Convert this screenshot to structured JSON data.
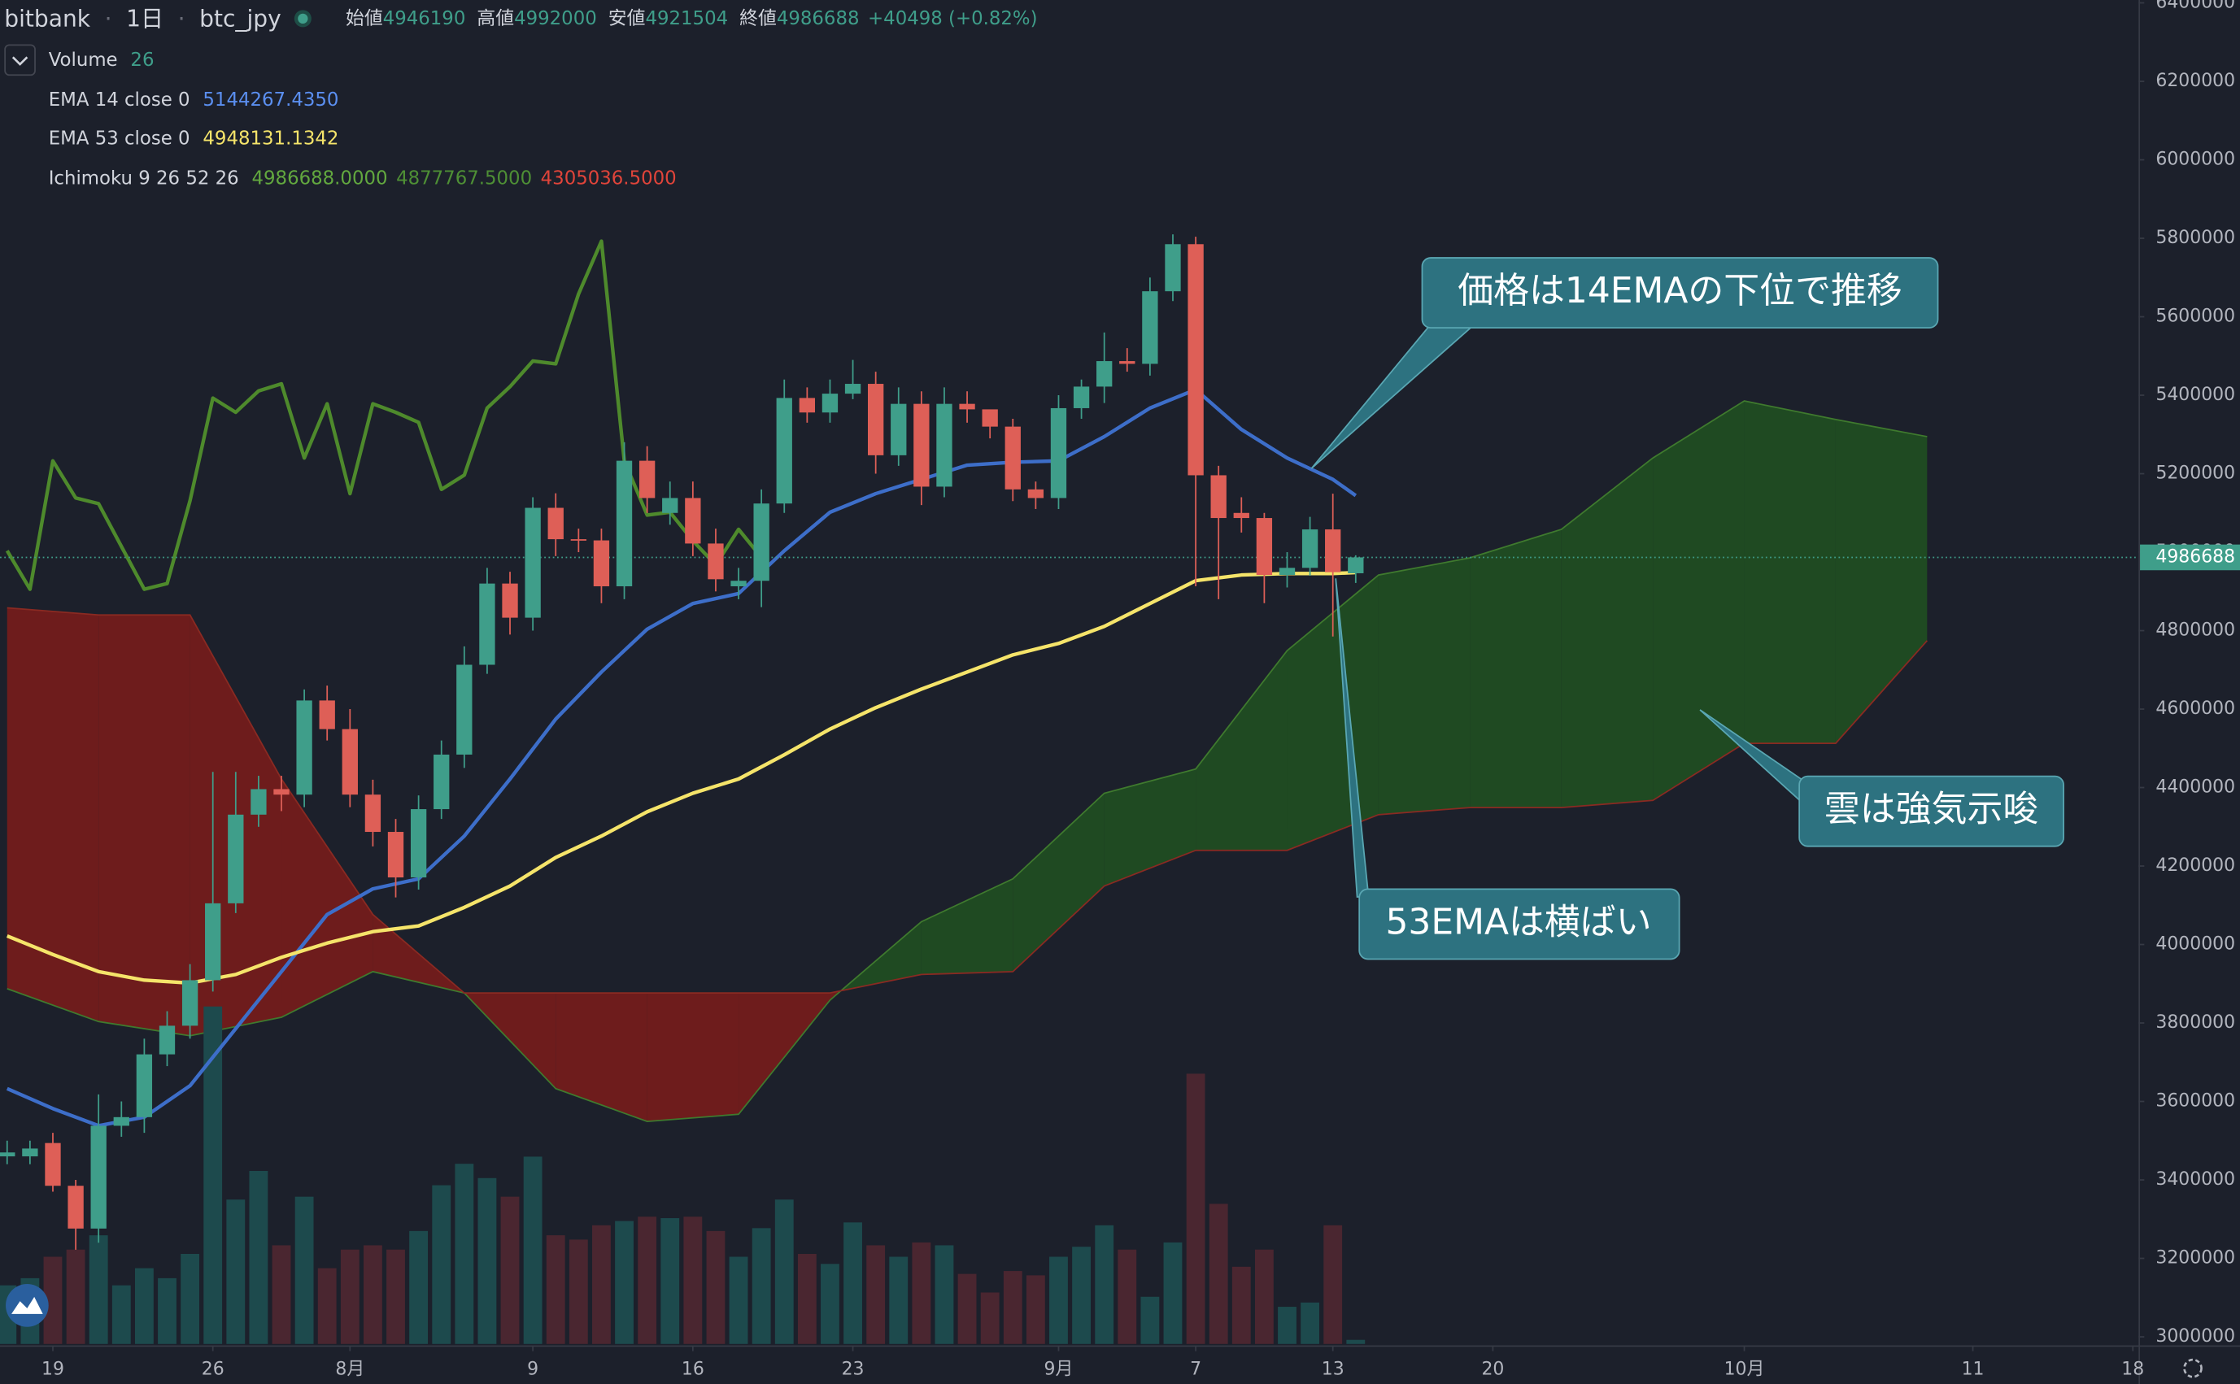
{
  "header": {
    "exchange": "bitbank",
    "interval": "1日",
    "symbol": "btc_jpy",
    "open_label": "始値",
    "open": 4946190,
    "high_label": "高値",
    "high": 4992000,
    "low_label": "安値",
    "low": 4921504,
    "close_label": "終値",
    "close": 4986688,
    "change": "+40498 (+0.82%)"
  },
  "legend": {
    "volume_name": "Volume",
    "volume_value": 26,
    "ema14_name": "EMA 14 close 0",
    "ema14_value": "5144267.4350",
    "ema53_name": "EMA 53 close 0",
    "ema53_value": "4948131.1342",
    "ichimoku_name": "Ichimoku 9 26 52 26",
    "ichimoku_value_1": "4986688.0000",
    "ichimoku_value_2": "4877767.5000",
    "ichimoku_value_3": "4305036.5000"
  },
  "annotations": [
    "価格は14EMAの下位で推移",
    "雲は強気示唆",
    "53EMAは横ばい"
  ],
  "chart_data": {
    "type": "candlestick",
    "xlim": [
      -0.3125,
      93.25
    ],
    "xticks": [
      {
        "value": 2,
        "label": "19"
      },
      {
        "value": 9,
        "label": "26"
      },
      {
        "value": 15,
        "label": "8月"
      },
      {
        "value": 23,
        "label": "9"
      },
      {
        "value": 30,
        "label": "16"
      },
      {
        "value": 37,
        "label": "23"
      },
      {
        "value": 46,
        "label": "9月"
      },
      {
        "value": 52,
        "label": "7"
      },
      {
        "value": 58,
        "label": "13"
      },
      {
        "value": 65,
        "label": "20"
      },
      {
        "value": 76,
        "label": "10月"
      },
      {
        "value": 86,
        "label": "11"
      },
      {
        "value": 93,
        "label": "18"
      }
    ],
    "ylim": [
      3000000,
      6400000
    ],
    "yticks": [
      3000000,
      3200000,
      3400000,
      3600000,
      3800000,
      4000000,
      4200000,
      4400000,
      4600000,
      4800000,
      5000000,
      5200000,
      5400000,
      5600000,
      5800000,
      6000000,
      6200000,
      6400000
    ],
    "last_price": 4986688,
    "up_color": "#3f9e8a",
    "down_color": "#de5f57",
    "volume_up_color": "#1d4a4d",
    "volume_down_color": "#4a2630",
    "candles": {
      "open": [
        3460000,
        3460000,
        3494000,
        3385000,
        3276000,
        3538000,
        3560000,
        3720000,
        3793000,
        3909000,
        4105000,
        4331000,
        4396000,
        4382000,
        4622000,
        4549000,
        4382000,
        4287000,
        4171000,
        4345000,
        4484000,
        4713000,
        4920000,
        4833000,
        5113000,
        5033000,
        5030000,
        4913000,
        5233000,
        5100000,
        5138000,
        5022000,
        4913000,
        4927000,
        5124000,
        5393000,
        5356000,
        5404000,
        5429000,
        5247000,
        5378000,
        5167000,
        5378000,
        5364000,
        5320000,
        5160000,
        5138000,
        5367000,
        5422000,
        5487000,
        5480000,
        5665000,
        5785000,
        5196000,
        5100000,
        5087000,
        4942000,
        4960000,
        5058000,
        4946190
      ],
      "high": [
        3500000,
        3500000,
        3520000,
        3400000,
        3618000,
        3600000,
        3760000,
        3830000,
        3950000,
        4440000,
        4440000,
        4430000,
        4430000,
        4650000,
        4660000,
        4600000,
        4420000,
        4320000,
        4380000,
        4520000,
        4760000,
        4960000,
        4950000,
        5140000,
        5150000,
        5060000,
        5060000,
        5280000,
        5270000,
        5180000,
        5180000,
        5060000,
        4960000,
        5160000,
        5440000,
        5420000,
        5440000,
        5490000,
        5460000,
        5420000,
        5410000,
        5420000,
        5410000,
        5360000,
        5340000,
        5180000,
        5400000,
        5440000,
        5560000,
        5520000,
        5700000,
        5810000,
        5804000,
        5220000,
        5140000,
        5100000,
        5000000,
        5090000,
        5149000,
        4992000
      ],
      "low": [
        3440000,
        3440000,
        3370000,
        3222000,
        3240000,
        3510000,
        3520000,
        3690000,
        3760000,
        3880000,
        4080000,
        4300000,
        4340000,
        4350000,
        4520000,
        4350000,
        4250000,
        4120000,
        4140000,
        4320000,
        4450000,
        4690000,
        4790000,
        4800000,
        4990000,
        5000000,
        4870000,
        4880000,
        5100000,
        5070000,
        4990000,
        4900000,
        4880000,
        4860000,
        5100000,
        5330000,
        5330000,
        5390000,
        5200000,
        5220000,
        5120000,
        5140000,
        5330000,
        5290000,
        5130000,
        5110000,
        5110000,
        5340000,
        5380000,
        5460000,
        5450000,
        5640000,
        4913000,
        4880000,
        5050000,
        4870000,
        4910000,
        4940000,
        4785000,
        4921504
      ],
      "close": [
        3470000,
        3480000,
        3385000,
        3276000,
        3538000,
        3560000,
        3720000,
        3793000,
        3909000,
        4105000,
        4331000,
        4396000,
        4382000,
        4622000,
        4549000,
        4382000,
        4287000,
        4171000,
        4345000,
        4484000,
        4713000,
        4920000,
        4833000,
        5113000,
        5033000,
        5030000,
        4913000,
        5233000,
        5138000,
        5138000,
        5022000,
        4931000,
        4927000,
        5124000,
        5393000,
        5356000,
        5404000,
        5429000,
        5247000,
        5378000,
        5167000,
        5378000,
        5364000,
        5320000,
        5160000,
        5138000,
        5367000,
        5422000,
        5487000,
        5480000,
        5665000,
        5785000,
        5196000,
        5087000,
        5087000,
        4942000,
        4960000,
        5058000,
        4949000,
        4986688
      ],
      "volume": [
        369,
        414,
        549,
        594,
        684,
        369,
        477,
        414,
        567,
        2124,
        909,
        1089,
        621,
        927,
        477,
        594,
        621,
        594,
        711,
        999,
        1134,
        1044,
        927,
        1179,
        684,
        657,
        747,
        774,
        801,
        792,
        801,
        711,
        549,
        729,
        909,
        567,
        504,
        765,
        621,
        549,
        639,
        621,
        441,
        324,
        459,
        432,
        549,
        612,
        747,
        594,
        297,
        639,
        1701,
        882,
        486,
        594,
        234,
        261,
        747,
        26
      ]
    },
    "series": [
      {
        "name": "EMA 14 close 0",
        "color": "#3d6ec9",
        "x": [
          0,
          2,
          4,
          6,
          8,
          10,
          12,
          14,
          16,
          18,
          20,
          22,
          24,
          26,
          28,
          30,
          32,
          34,
          36,
          38,
          40,
          42,
          44,
          46,
          48,
          50,
          52,
          54,
          56,
          58,
          59
        ],
        "values": [
          3632700,
          3581800,
          3538200,
          3560000,
          3640000,
          3785500,
          3930900,
          4076400,
          4141800,
          4167300,
          4276400,
          4421800,
          4574500,
          4694500,
          4803600,
          4869100,
          4894500,
          5003600,
          5101800,
          5149100,
          5185500,
          5221800,
          5229100,
          5232700,
          5294500,
          5367300,
          5414500,
          5312700,
          5240000,
          5185500,
          5144267.435
        ]
      },
      {
        "name": "EMA 53 close 0",
        "color": "#f5e46a",
        "x": [
          0,
          2,
          4,
          6,
          8,
          10,
          12,
          14,
          16,
          18,
          20,
          22,
          24,
          26,
          28,
          30,
          32,
          34,
          36,
          38,
          40,
          42,
          44,
          46,
          48,
          50,
          52,
          54,
          56,
          58,
          59
        ],
        "values": [
          4021800,
          3974500,
          3930900,
          3909100,
          3901800,
          3923600,
          3967300,
          4003600,
          4032700,
          4047300,
          4094500,
          4149100,
          4221800,
          4276400,
          4338200,
          4385500,
          4421800,
          4483600,
          4549100,
          4603600,
          4650900,
          4694500,
          4738200,
          4767300,
          4810900,
          4869100,
          4927300,
          4941800,
          4945500,
          4945500,
          4948131.1342
        ]
      }
    ],
    "chikou": {
      "color": "#4e8a2c",
      "x": [
        0,
        1,
        2,
        3,
        4,
        5,
        6,
        7,
        8,
        9,
        10,
        11,
        12,
        13,
        14,
        15,
        16,
        17,
        18,
        19,
        20,
        21,
        22,
        23,
        24,
        25,
        26,
        27,
        28,
        29,
        30,
        31,
        32,
        33
      ],
      "values": [
        5003600,
        4905500,
        5232700,
        5138200,
        5123600,
        5014500,
        4905500,
        4920000,
        5130900,
        5392700,
        5356400,
        5410900,
        5429100,
        5240000,
        5378200,
        5149100,
        5378200,
        5356400,
        5330900,
        5160000,
        5196400,
        5367300,
        5421800,
        5487300,
        5480000,
        5658200,
        5792700,
        5232700,
        5094500,
        5101800,
        5029100,
        4967300,
        5058200,
        4986688
      ]
    },
    "cloud": {
      "bull_color": "#1f4a22",
      "bear_color": "#6e1c1c",
      "span_a_color": "#3f7a2e",
      "span_b_color": "#8a2a22",
      "x": [
        0,
        4,
        8,
        12,
        16,
        20,
        24,
        28,
        32,
        36,
        40,
        44,
        48,
        52,
        56,
        60,
        64,
        68,
        72,
        76,
        80,
        84
      ],
      "span_a": [
        3887300,
        3803600,
        3767300,
        3814500,
        3930900,
        3876400,
        3632700,
        3549100,
        3567300,
        3858200,
        4058200,
        4167300,
        4385500,
        4447300,
        4749100,
        4941800,
        4985500,
        5058200,
        5240000,
        5385500,
        5338200,
        5294500
      ],
      "span_b": [
        4858200,
        4840000,
        4840000,
        4421800,
        4076400,
        3876400,
        3876400,
        3876400,
        3876400,
        3876400,
        3923600,
        3930900,
        4149100,
        4240000,
        4240000,
        4330900,
        4349100,
        4349100,
        4367300,
        4512700,
        4512700,
        4774500
      ]
    }
  }
}
